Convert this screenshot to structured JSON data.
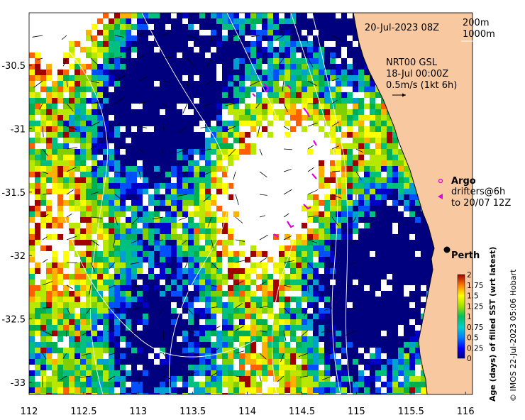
{
  "map": {
    "date_label": "20-Jul-2023 08Z",
    "contour_legend": [
      "200m",
      "1000m"
    ],
    "current_source": "NRT00 GSL",
    "current_time": "18-Jul 00:00Z",
    "current_scale": "0.5m/s (1kt 6h)",
    "argo_label": "Argo",
    "drifters_line1": "drifters@6h",
    "drifters_line2": "to 20/07 12Z",
    "city_label": "Perth",
    "x_ticks": [
      "112",
      "112.5",
      "113",
      "113.5",
      "114",
      "114.5",
      "115",
      "115.5",
      "116"
    ],
    "y_ticks": [
      "-30.5",
      "-31",
      "-31.5",
      "-32",
      "-32.5",
      "-33"
    ],
    "colorbar_ticks": [
      "2",
      "1.75",
      "1.5",
      "1.25",
      "1",
      "0.75",
      "0.5",
      "0.25",
      "0"
    ],
    "colorbar_label": "Age (days) of filled SST (wrt latest)",
    "credit": "© IMOS 22-Jul-2023 05:06 Hobart",
    "colors": {
      "land": "#f8c9a0",
      "coast": "#000000",
      "argo": "#e000e0",
      "drifter": "#e000e0"
    }
  }
}
